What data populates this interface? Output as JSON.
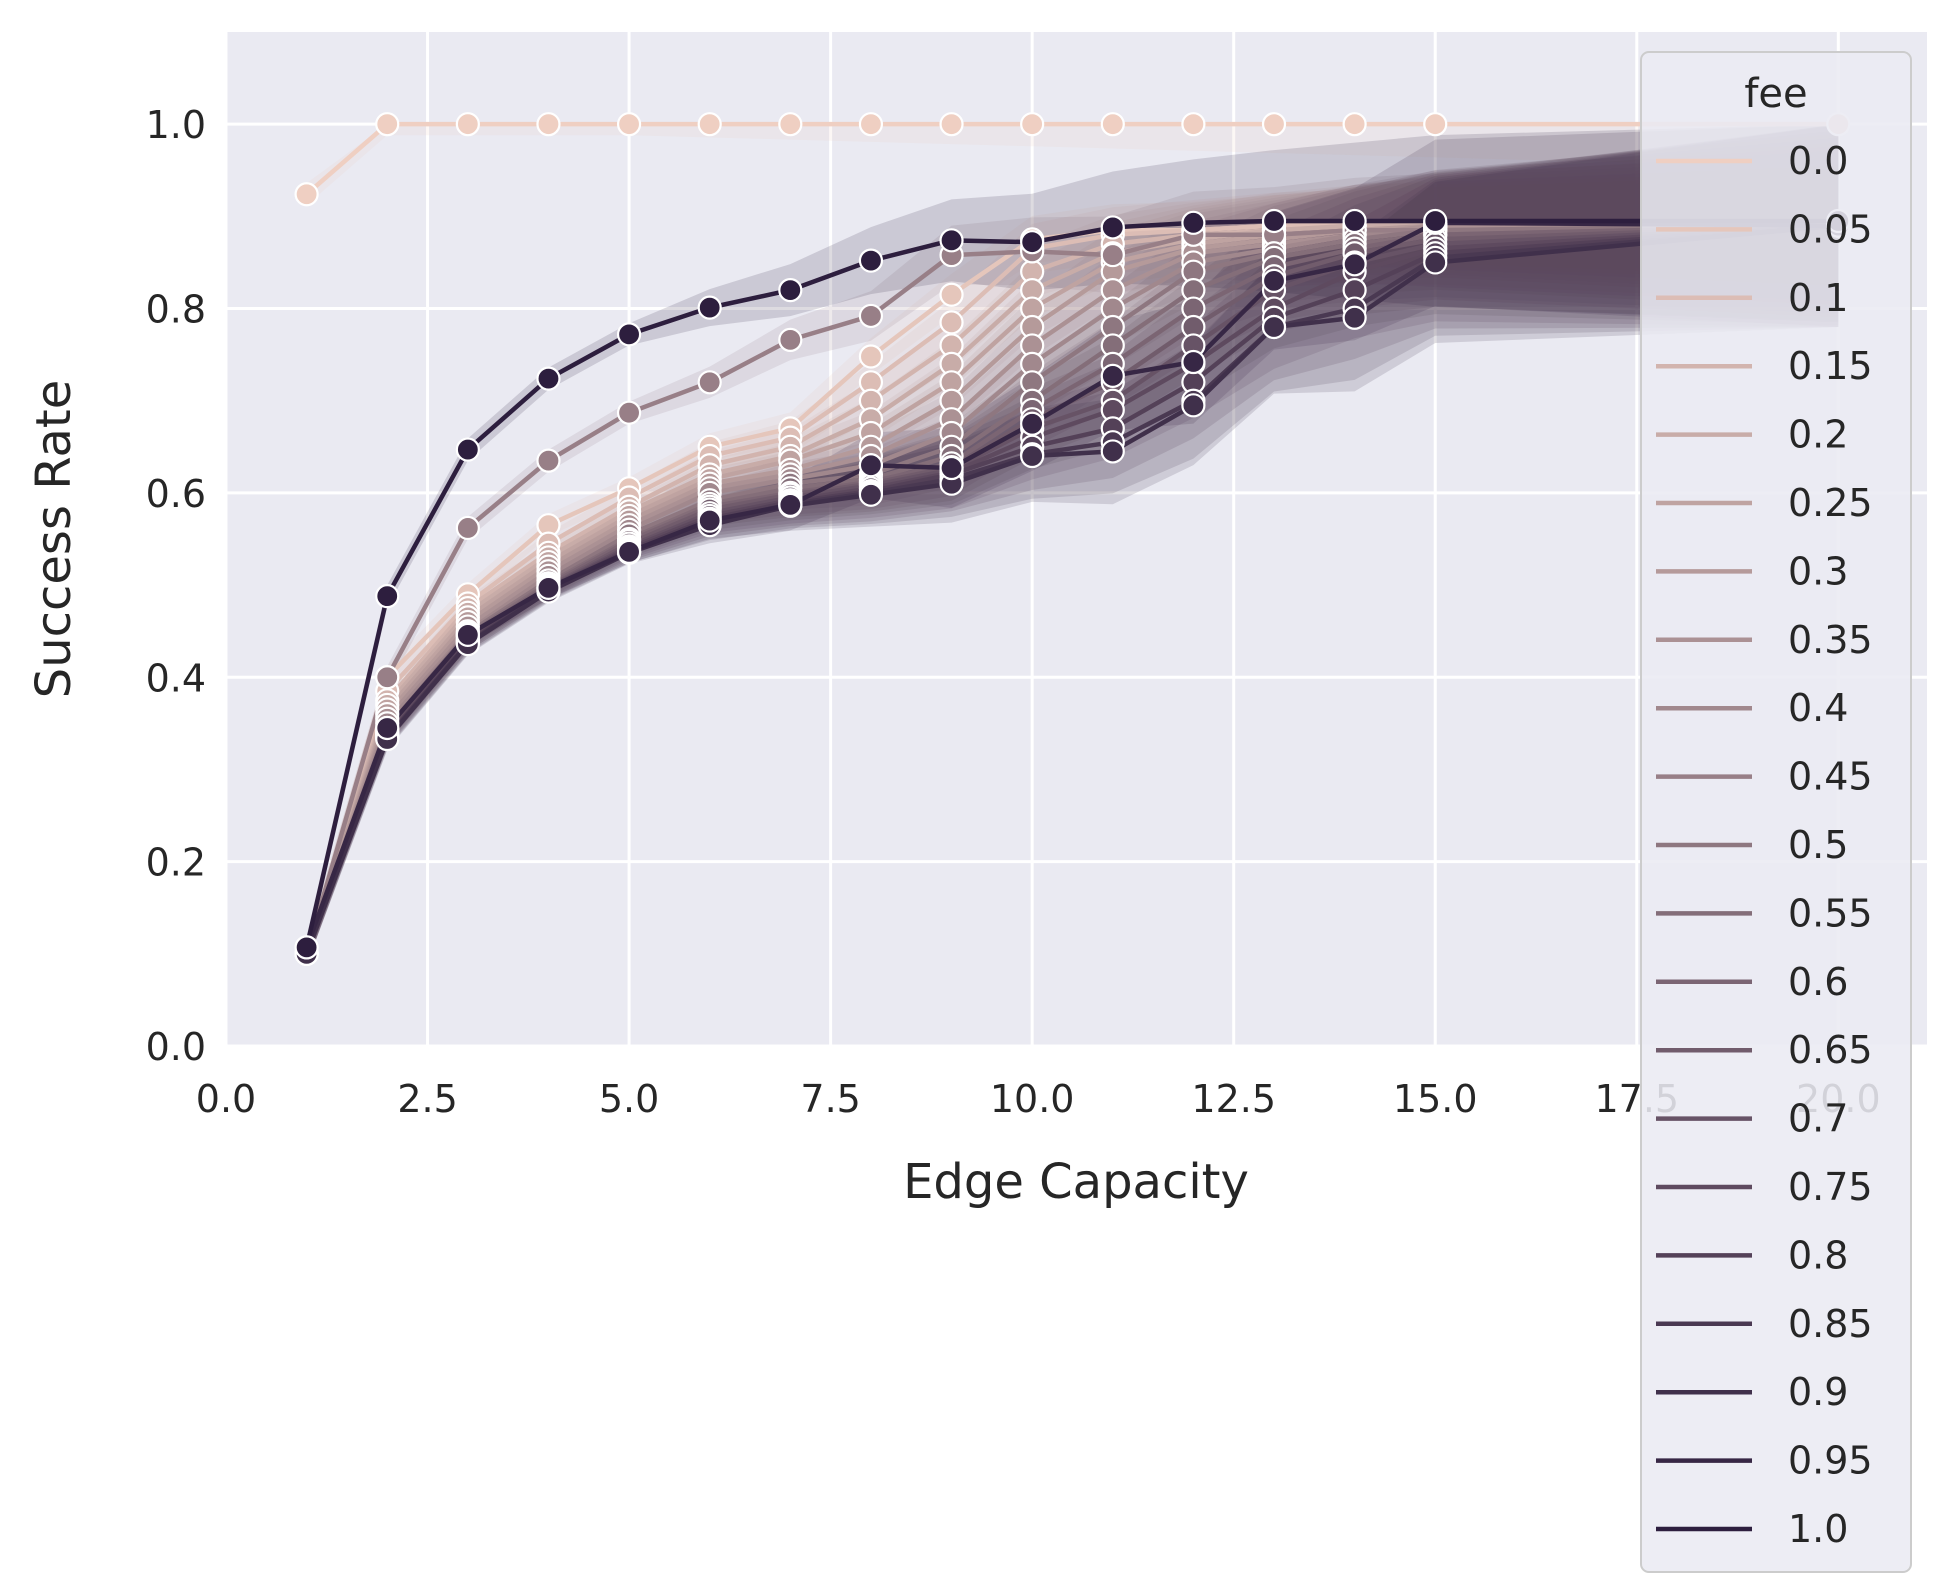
{
  "chart_data": {
    "type": "line",
    "xlabel": "Edge Capacity",
    "ylabel": "Success Rate",
    "xlim": [
      0,
      21.1
    ],
    "ylim": [
      0,
      1.1
    ],
    "xticks": [
      "0.0",
      "2.5",
      "5.0",
      "7.5",
      "10.0",
      "12.5",
      "15.0",
      "17.5",
      "20.0"
    ],
    "yticks": [
      "0.0",
      "0.2",
      "0.4",
      "0.6",
      "0.8",
      "1.0"
    ],
    "grid": true,
    "legend": {
      "title": "fee",
      "placement": "right"
    },
    "palette": {
      "light": "#efcfc2",
      "dark": "#2d1e3e"
    },
    "series": [
      {
        "name": "0.0",
        "x": [
          1,
          2,
          3,
          4,
          5,
          6,
          7,
          8,
          9,
          10,
          11,
          12,
          13,
          14,
          15,
          20
        ],
        "y": [
          0.924,
          1.0,
          1.0,
          1.0,
          1.0,
          1.0,
          1.0,
          1.0,
          1.0,
          1.0,
          1.0,
          1.0,
          1.0,
          1.0,
          1.0,
          1.0
        ]
      },
      {
        "name": "0.05",
        "x": [
          1,
          2,
          3,
          4,
          5,
          6,
          7,
          8,
          9,
          10,
          11,
          12,
          13,
          14,
          15,
          20
        ],
        "y": [
          0.1,
          0.4,
          0.49,
          0.565,
          0.605,
          0.65,
          0.67,
          0.748,
          0.815,
          0.875,
          0.885,
          0.885,
          0.89,
          0.89,
          0.89,
          0.89
        ]
      },
      {
        "name": "0.1",
        "x": [
          1,
          2,
          3,
          4,
          5,
          6,
          7,
          8,
          9,
          10,
          11,
          12,
          13,
          14,
          15,
          20
        ],
        "y": [
          0.1,
          0.385,
          0.48,
          0.545,
          0.595,
          0.64,
          0.66,
          0.72,
          0.785,
          0.865,
          0.88,
          0.885,
          0.89,
          0.89,
          0.89,
          0.89
        ]
      },
      {
        "name": "0.15",
        "x": [
          1,
          2,
          3,
          4,
          5,
          6,
          7,
          8,
          9,
          10,
          11,
          12,
          13,
          14,
          15,
          20
        ],
        "y": [
          0.1,
          0.375,
          0.475,
          0.535,
          0.585,
          0.63,
          0.65,
          0.7,
          0.76,
          0.84,
          0.87,
          0.88,
          0.885,
          0.89,
          0.89,
          0.89
        ]
      },
      {
        "name": "0.2",
        "x": [
          1,
          2,
          3,
          4,
          5,
          6,
          7,
          8,
          9,
          10,
          11,
          12,
          13,
          14,
          15,
          20
        ],
        "y": [
          0.1,
          0.37,
          0.47,
          0.53,
          0.58,
          0.62,
          0.64,
          0.68,
          0.74,
          0.82,
          0.86,
          0.875,
          0.885,
          0.89,
          0.89,
          0.89
        ]
      },
      {
        "name": "0.25",
        "x": [
          1,
          2,
          3,
          4,
          5,
          6,
          7,
          8,
          9,
          10,
          11,
          12,
          13,
          14,
          15,
          20
        ],
        "y": [
          0.1,
          0.365,
          0.465,
          0.525,
          0.575,
          0.615,
          0.635,
          0.665,
          0.72,
          0.8,
          0.85,
          0.87,
          0.88,
          0.885,
          0.89,
          0.89
        ]
      },
      {
        "name": "0.3",
        "x": [
          1,
          2,
          3,
          4,
          5,
          6,
          7,
          8,
          9,
          10,
          11,
          12,
          13,
          14,
          15,
          20
        ],
        "y": [
          0.1,
          0.36,
          0.46,
          0.52,
          0.57,
          0.61,
          0.625,
          0.65,
          0.7,
          0.78,
          0.84,
          0.865,
          0.875,
          0.885,
          0.89,
          0.89
        ]
      },
      {
        "name": "0.35",
        "x": [
          1,
          2,
          3,
          4,
          5,
          6,
          7,
          8,
          9,
          10,
          11,
          12,
          13,
          14,
          15,
          20
        ],
        "y": [
          0.1,
          0.355,
          0.455,
          0.515,
          0.565,
          0.605,
          0.62,
          0.64,
          0.68,
          0.76,
          0.82,
          0.86,
          0.87,
          0.88,
          0.89,
          0.89
        ]
      },
      {
        "name": "0.4",
        "x": [
          1,
          2,
          3,
          4,
          5,
          6,
          7,
          8,
          9,
          10,
          11,
          12,
          13,
          14,
          15,
          20
        ],
        "y": [
          0.1,
          0.35,
          0.45,
          0.51,
          0.56,
          0.6,
          0.615,
          0.63,
          0.665,
          0.74,
          0.8,
          0.85,
          0.865,
          0.88,
          0.885,
          0.89
        ]
      },
      {
        "name": "0.45",
        "x": [
          1,
          2,
          3,
          4,
          5,
          6,
          7,
          8,
          9,
          10,
          11,
          12,
          13,
          14,
          15,
          20
        ],
        "y": [
          0.1,
          0.4,
          0.562,
          0.635,
          0.687,
          0.72,
          0.766,
          0.792,
          0.858,
          0.862,
          0.858,
          0.88,
          0.88,
          0.885,
          0.885,
          0.89
        ]
      },
      {
        "name": "0.5",
        "x": [
          1,
          2,
          3,
          4,
          5,
          6,
          7,
          8,
          9,
          10,
          11,
          12,
          13,
          14,
          15,
          20
        ],
        "y": [
          0.1,
          0.345,
          0.448,
          0.505,
          0.555,
          0.592,
          0.61,
          0.62,
          0.65,
          0.72,
          0.78,
          0.84,
          0.86,
          0.875,
          0.885,
          0.89
        ]
      },
      {
        "name": "0.55",
        "x": [
          1,
          2,
          3,
          4,
          5,
          6,
          7,
          8,
          9,
          10,
          11,
          12,
          13,
          14,
          15,
          20
        ],
        "y": [
          0.1,
          0.343,
          0.446,
          0.502,
          0.55,
          0.588,
          0.605,
          0.615,
          0.64,
          0.7,
          0.76,
          0.82,
          0.855,
          0.87,
          0.88,
          0.89
        ]
      },
      {
        "name": "0.6",
        "x": [
          1,
          2,
          3,
          4,
          5,
          6,
          7,
          8,
          9,
          10,
          11,
          12,
          13,
          14,
          15,
          20
        ],
        "y": [
          0.1,
          0.34,
          0.444,
          0.5,
          0.548,
          0.585,
          0.6,
          0.612,
          0.632,
          0.69,
          0.74,
          0.8,
          0.845,
          0.865,
          0.88,
          0.89
        ]
      },
      {
        "name": "0.65",
        "x": [
          1,
          2,
          3,
          4,
          5,
          6,
          7,
          8,
          9,
          10,
          11,
          12,
          13,
          14,
          15,
          20
        ],
        "y": [
          0.1,
          0.34,
          0.442,
          0.498,
          0.545,
          0.582,
          0.598,
          0.61,
          0.628,
          0.68,
          0.72,
          0.78,
          0.835,
          0.86,
          0.875,
          0.89
        ]
      },
      {
        "name": "0.7",
        "x": [
          1,
          2,
          3,
          4,
          5,
          6,
          7,
          8,
          9,
          10,
          11,
          12,
          13,
          14,
          15,
          20
        ],
        "y": [
          0.1,
          0.338,
          0.44,
          0.497,
          0.542,
          0.578,
          0.595,
          0.608,
          0.625,
          0.67,
          0.7,
          0.76,
          0.82,
          0.85,
          0.87,
          0.89
        ]
      },
      {
        "name": "0.75",
        "x": [
          1,
          2,
          3,
          4,
          5,
          6,
          7,
          8,
          9,
          10,
          11,
          12,
          13,
          14,
          15,
          20
        ],
        "y": [
          0.1,
          0.336,
          0.44,
          0.496,
          0.54,
          0.575,
          0.592,
          0.605,
          0.622,
          0.66,
          0.69,
          0.74,
          0.8,
          0.84,
          0.865,
          0.89
        ]
      },
      {
        "name": "0.8",
        "x": [
          1,
          2,
          3,
          4,
          5,
          6,
          7,
          8,
          9,
          10,
          11,
          12,
          13,
          14,
          15,
          20
        ],
        "y": [
          0.1,
          0.335,
          0.438,
          0.495,
          0.538,
          0.572,
          0.59,
          0.602,
          0.62,
          0.65,
          0.67,
          0.72,
          0.79,
          0.82,
          0.86,
          0.89
        ]
      },
      {
        "name": "0.85",
        "x": [
          1,
          2,
          3,
          4,
          5,
          6,
          7,
          8,
          9,
          10,
          11,
          12,
          13,
          14,
          15,
          20
        ],
        "y": [
          0.1,
          0.334,
          0.437,
          0.494,
          0.536,
          0.568,
          0.588,
          0.6,
          0.615,
          0.642,
          0.655,
          0.7,
          0.78,
          0.8,
          0.855,
          0.89
        ]
      },
      {
        "name": "0.9",
        "x": [
          1,
          2,
          3,
          4,
          5,
          6,
          7,
          8,
          9,
          10,
          11,
          12,
          13,
          14,
          15,
          20
        ],
        "y": [
          0.1,
          0.333,
          0.436,
          0.493,
          0.535,
          0.565,
          0.586,
          0.598,
          0.61,
          0.64,
          0.645,
          0.695,
          0.78,
          0.79,
          0.85,
          0.89
        ]
      },
      {
        "name": "0.95",
        "x": [
          1,
          2,
          3,
          4,
          5,
          6,
          7,
          8,
          9,
          10,
          11,
          12,
          13,
          14,
          15,
          20
        ],
        "y": [
          0.107,
          0.345,
          0.446,
          0.497,
          0.536,
          0.57,
          0.587,
          0.63,
          0.627,
          0.675,
          0.727,
          0.742,
          0.83,
          0.848,
          0.893,
          0.89
        ]
      },
      {
        "name": "1.0",
        "x": [
          1,
          2,
          3,
          4,
          5,
          6,
          7,
          8,
          9,
          10,
          11,
          12,
          13,
          14,
          15,
          20
        ],
        "y": [
          0.107,
          0.488,
          0.647,
          0.724,
          0.772,
          0.801,
          0.82,
          0.852,
          0.874,
          0.872,
          0.888,
          0.893,
          0.895,
          0.895,
          0.895,
          0.895
        ]
      }
    ]
  }
}
